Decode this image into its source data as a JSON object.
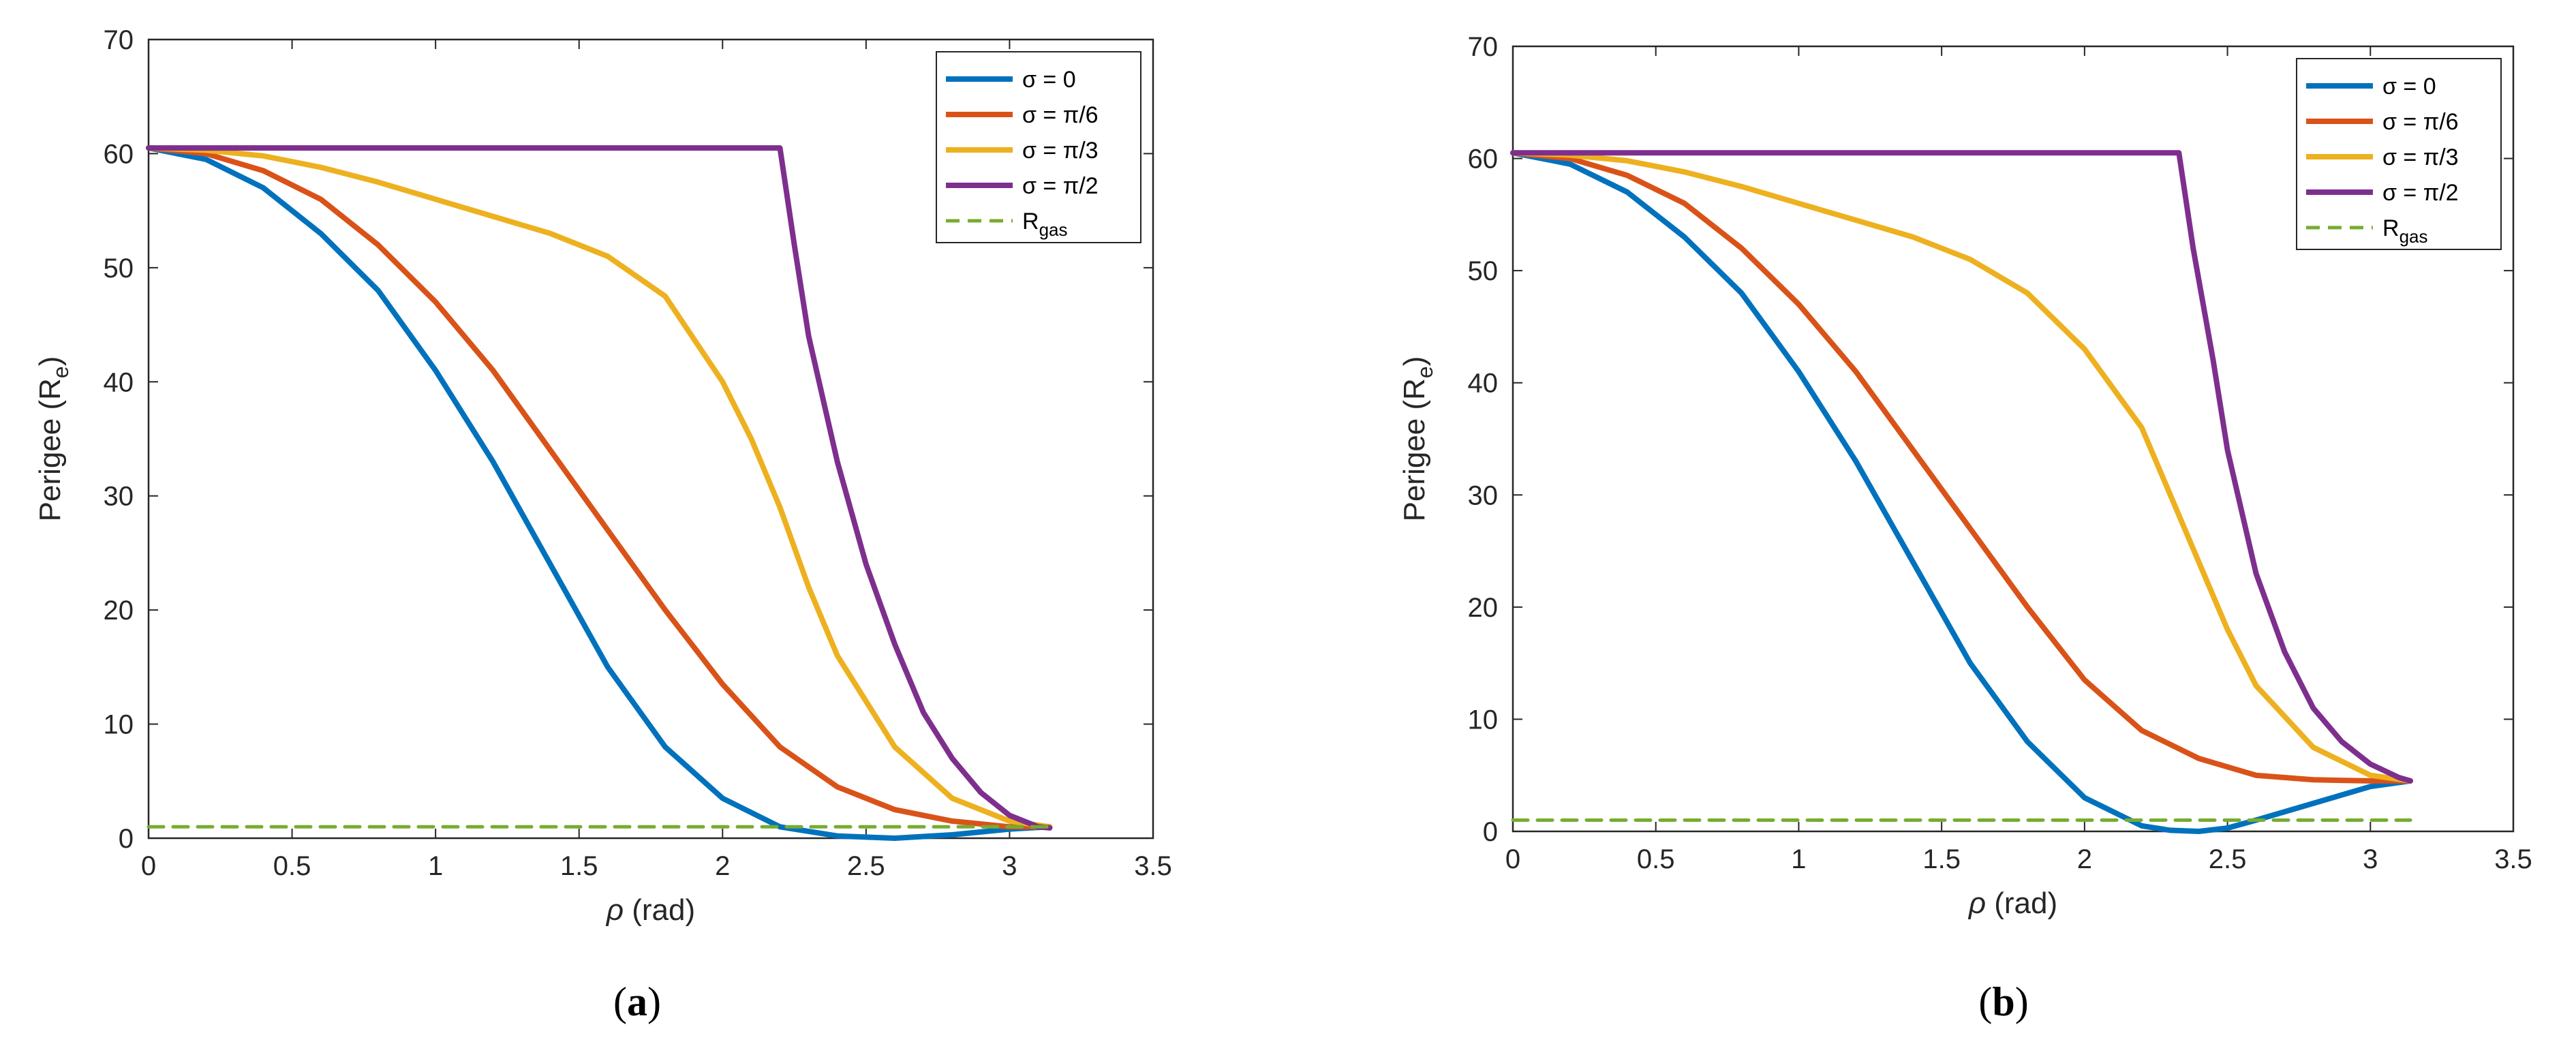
{
  "chart_data": [
    {
      "type": "line",
      "panel_label": "(a)",
      "panel_letter": "a",
      "xlabel": "ρ (rad)",
      "xlabel_symbol": "ρ",
      "xlabel_unit": " (rad)",
      "ylabel": "Perigee (Re)",
      "ylabel_main": "Perigee (R",
      "ylabel_sub": "e",
      "ylabel_close": ")",
      "xlim": [
        0,
        3.5
      ],
      "ylim": [
        0,
        70
      ],
      "xticks": [
        0,
        0.5,
        1,
        1.5,
        2,
        2.5,
        3,
        3.5
      ],
      "xtick_labels": [
        "0",
        "0.5",
        "1",
        "1.5",
        "2",
        "2.5",
        "3",
        "3.5"
      ],
      "yticks": [
        0,
        10,
        20,
        30,
        40,
        50,
        60,
        70
      ],
      "ytick_labels": [
        "0",
        "10",
        "20",
        "30",
        "40",
        "50",
        "60",
        "70"
      ],
      "legend_position": "top-right",
      "series": [
        {
          "name": "σ = 0",
          "label_main": "σ = 0",
          "color": "#0072BD",
          "style": "solid",
          "x": [
            0,
            0.2,
            0.4,
            0.6,
            0.8,
            1.0,
            1.2,
            1.4,
            1.6,
            1.8,
            2.0,
            2.2,
            2.4,
            2.6,
            2.8,
            3.0,
            3.14
          ],
          "y": [
            60.5,
            59.5,
            57.0,
            53.0,
            48.0,
            41.0,
            33.0,
            24.0,
            15.0,
            8.0,
            3.5,
            1.0,
            0.2,
            0.0,
            0.3,
            0.8,
            1.0
          ]
        },
        {
          "name": "σ = π/6",
          "label_main": "σ = π/6",
          "color": "#D95319",
          "style": "solid",
          "x": [
            0,
            0.2,
            0.4,
            0.6,
            0.8,
            1.0,
            1.2,
            1.4,
            1.6,
            1.8,
            2.0,
            2.2,
            2.4,
            2.6,
            2.8,
            3.0,
            3.14
          ],
          "y": [
            60.5,
            60.0,
            58.5,
            56.0,
            52.0,
            47.0,
            41.0,
            34.0,
            27.0,
            20.0,
            13.5,
            8.0,
            4.5,
            2.5,
            1.5,
            1.0,
            1.0
          ]
        },
        {
          "name": "σ = π/3",
          "label_main": "σ = π/3",
          "color": "#EDB120",
          "style": "solid",
          "x": [
            0,
            0.2,
            0.4,
            0.6,
            0.8,
            1.0,
            1.2,
            1.4,
            1.6,
            1.8,
            2.0,
            2.1,
            2.2,
            2.3,
            2.4,
            2.6,
            2.8,
            3.0,
            3.14
          ],
          "y": [
            60.5,
            60.3,
            59.8,
            58.8,
            57.5,
            56.0,
            54.5,
            53.0,
            51.0,
            47.5,
            40.0,
            35.0,
            29.0,
            22.0,
            16.0,
            8.0,
            3.5,
            1.5,
            1.0
          ]
        },
        {
          "name": "σ = π/2",
          "label_main": "σ = π/2",
          "color": "#7E2F8E",
          "style": "solid",
          "x": [
            0,
            2.2,
            2.25,
            2.3,
            2.4,
            2.5,
            2.6,
            2.7,
            2.8,
            2.9,
            3.0,
            3.1,
            3.14
          ],
          "y": [
            60.5,
            60.5,
            52.0,
            44.0,
            33.0,
            24.0,
            17.0,
            11.0,
            7.0,
            4.0,
            2.0,
            1.0,
            0.9
          ]
        },
        {
          "name": "R_gas",
          "label_main": "R",
          "label_sub": "gas",
          "color": "#77AC30",
          "style": "dashed",
          "x": [
            0,
            3.14
          ],
          "y": [
            1.0,
            1.0
          ]
        }
      ]
    },
    {
      "type": "line",
      "panel_label": "(b)",
      "panel_letter": "b",
      "xlabel": "ρ (rad)",
      "xlabel_symbol": "ρ",
      "xlabel_unit": " (rad)",
      "ylabel": "Perigee (Re)",
      "ylabel_main": "Perigee (R",
      "ylabel_sub": "e",
      "ylabel_close": ")",
      "xlim": [
        0,
        3.5
      ],
      "ylim": [
        0,
        70
      ],
      "xticks": [
        0,
        0.5,
        1,
        1.5,
        2,
        2.5,
        3,
        3.5
      ],
      "xtick_labels": [
        "0",
        "0.5",
        "1",
        "1.5",
        "2",
        "2.5",
        "3",
        "3.5"
      ],
      "yticks": [
        0,
        10,
        20,
        30,
        40,
        50,
        60,
        70
      ],
      "ytick_labels": [
        "0",
        "10",
        "20",
        "30",
        "40",
        "50",
        "60",
        "70"
      ],
      "legend_position": "top-right",
      "series": [
        {
          "name": "σ = 0",
          "label_main": "σ = 0",
          "color": "#0072BD",
          "style": "solid",
          "x": [
            0,
            0.2,
            0.4,
            0.6,
            0.8,
            1.0,
            1.2,
            1.4,
            1.6,
            1.8,
            2.0,
            2.2,
            2.3,
            2.4,
            2.5,
            2.6,
            2.8,
            3.0,
            3.14
          ],
          "y": [
            60.5,
            59.5,
            57.0,
            53.0,
            48.0,
            41.0,
            33.0,
            24.0,
            15.0,
            8.0,
            3.0,
            0.5,
            0.1,
            0.0,
            0.3,
            1.0,
            2.5,
            4.0,
            4.5
          ]
        },
        {
          "name": "σ = π/6",
          "label_main": "σ = π/6",
          "color": "#D95319",
          "style": "solid",
          "x": [
            0,
            0.2,
            0.4,
            0.6,
            0.8,
            1.0,
            1.2,
            1.4,
            1.6,
            1.8,
            2.0,
            2.2,
            2.4,
            2.6,
            2.8,
            3.0,
            3.14
          ],
          "y": [
            60.5,
            60.0,
            58.5,
            56.0,
            52.0,
            47.0,
            41.0,
            34.0,
            27.0,
            20.0,
            13.5,
            9.0,
            6.5,
            5.0,
            4.6,
            4.5,
            4.5
          ]
        },
        {
          "name": "σ = π/3",
          "label_main": "σ = π/3",
          "color": "#EDB120",
          "style": "solid",
          "x": [
            0,
            0.2,
            0.4,
            0.6,
            0.8,
            1.0,
            1.2,
            1.4,
            1.6,
            1.8,
            2.0,
            2.2,
            2.3,
            2.4,
            2.5,
            2.6,
            2.8,
            3.0,
            3.14
          ],
          "y": [
            60.5,
            60.3,
            59.8,
            58.8,
            57.5,
            56.0,
            54.5,
            53.0,
            51.0,
            48.0,
            43.0,
            36.0,
            30.0,
            24.0,
            18.0,
            13.0,
            7.5,
            5.0,
            4.5
          ]
        },
        {
          "name": "σ = π/2",
          "label_main": "σ = π/2",
          "color": "#7E2F8E",
          "style": "solid",
          "x": [
            0,
            2.33,
            2.38,
            2.45,
            2.5,
            2.6,
            2.7,
            2.8,
            2.9,
            3.0,
            3.1,
            3.14
          ],
          "y": [
            60.5,
            60.5,
            52.0,
            42.0,
            34.0,
            23.0,
            16.0,
            11.0,
            8.0,
            6.0,
            4.8,
            4.5
          ]
        },
        {
          "name": "R_gas",
          "label_main": "R",
          "label_sub": "gas",
          "color": "#77AC30",
          "style": "dashed",
          "x": [
            0,
            3.14
          ],
          "y": [
            1.0,
            1.0
          ]
        }
      ]
    }
  ]
}
